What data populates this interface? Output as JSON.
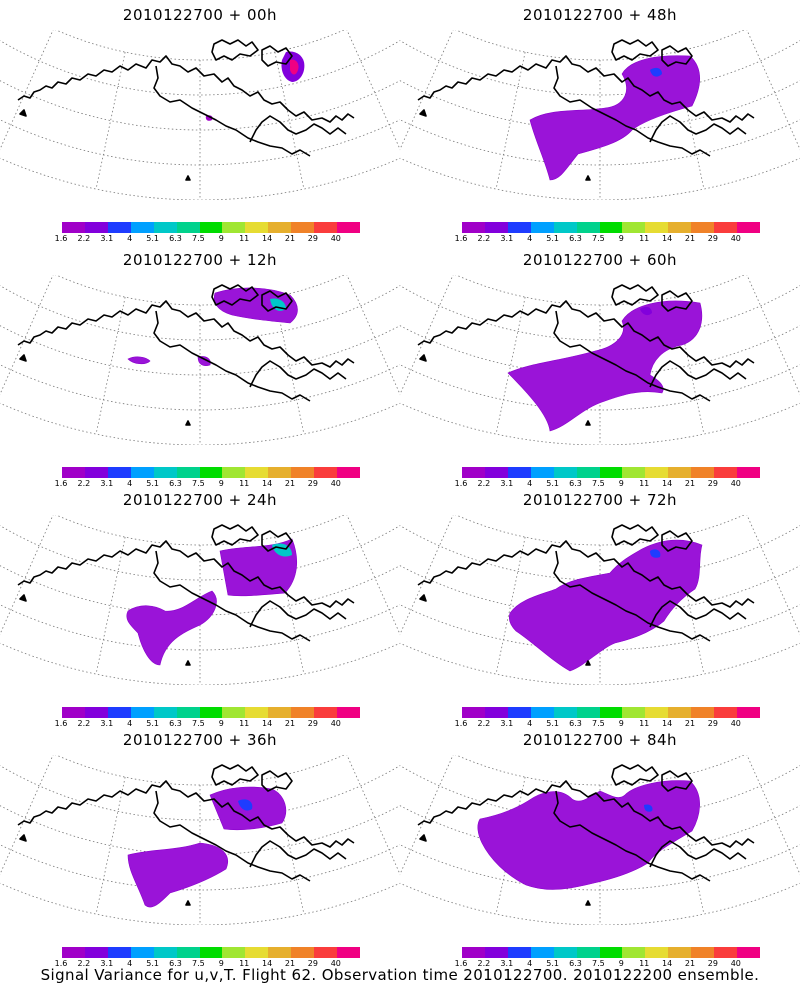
{
  "panels": [
    {
      "title": "2010122700 + 00h"
    },
    {
      "title": "2010122700 + 48h"
    },
    {
      "title": "2010122700 + 12h"
    },
    {
      "title": "2010122700 + 60h"
    },
    {
      "title": "2010122700 + 24h"
    },
    {
      "title": "2010122700 + 72h"
    },
    {
      "title": "2010122700 + 36h"
    },
    {
      "title": "2010122700 + 84h"
    }
  ],
  "colorbar": {
    "labels": [
      "1.6",
      "2.2",
      "3.1",
      "4",
      "5.1",
      "6.3",
      "7.5",
      "9",
      "11",
      "14",
      "21",
      "29",
      "40"
    ],
    "colors": [
      "#a000c8",
      "#8200dc",
      "#1e3cff",
      "#00a0ff",
      "#00c8c8",
      "#00d28c",
      "#00dc00",
      "#a0e632",
      "#e6dc32",
      "#e6af2d",
      "#f08228",
      "#fa3c3c",
      "#f00082"
    ]
  },
  "caption": "Signal Variance for u,v,T. Flight 62. Observation time 2010122700. 2010122200 ensemble."
}
